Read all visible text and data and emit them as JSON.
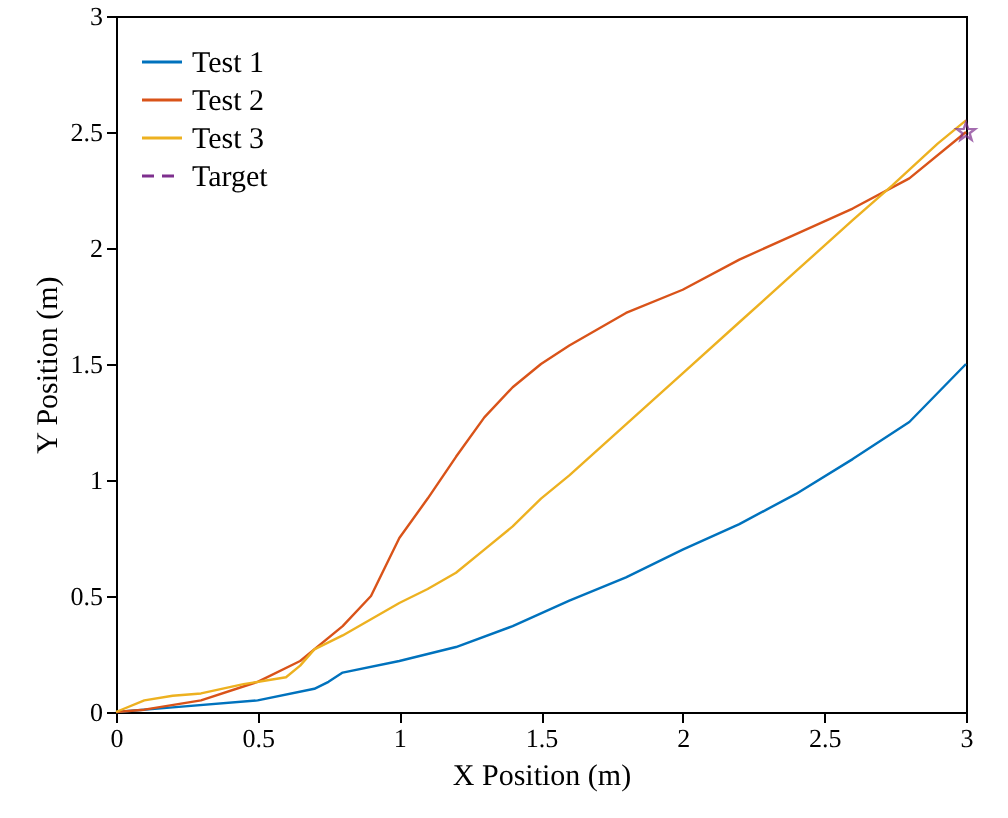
{
  "chart_data": {
    "type": "line",
    "xlabel": "X Position (m)",
    "ylabel": "Y Position (m)",
    "xlim": [
      0,
      3
    ],
    "ylim": [
      0,
      3
    ],
    "xticks": [
      0,
      0.5,
      1,
      1.5,
      2,
      2.5,
      3
    ],
    "yticks": [
      0,
      0.5,
      1,
      1.5,
      2,
      2.5,
      3
    ],
    "grid": false,
    "legend": "top left",
    "series": [
      {
        "name": "Test 1",
        "color": "#0072bd",
        "x": [
          0,
          0.2,
          0.5,
          0.7,
          0.75,
          0.8,
          1,
          1.2,
          1.4,
          1.6,
          1.8,
          2,
          2.2,
          2.4,
          2.6,
          2.8,
          3
        ],
        "values": [
          0,
          0.02,
          0.05,
          0.1,
          0.13,
          0.17,
          0.22,
          0.28,
          0.37,
          0.48,
          0.58,
          0.7,
          0.81,
          0.94,
          1.09,
          1.25,
          1.5
        ]
      },
      {
        "name": "Test 2",
        "color": "#d95319",
        "x": [
          0,
          0.1,
          0.3,
          0.5,
          0.65,
          0.8,
          0.9,
          1,
          1.1,
          1.2,
          1.3,
          1.4,
          1.5,
          1.6,
          1.8,
          2,
          2.2,
          2.4,
          2.6,
          2.8,
          3
        ],
        "values": [
          0,
          0.01,
          0.05,
          0.13,
          0.22,
          0.37,
          0.5,
          0.75,
          0.92,
          1.1,
          1.27,
          1.4,
          1.5,
          1.58,
          1.72,
          1.82,
          1.95,
          2.06,
          2.17,
          2.3,
          2.5
        ]
      },
      {
        "name": "Test 3",
        "color": "#edb120",
        "x": [
          0,
          0.1,
          0.2,
          0.3,
          0.45,
          0.6,
          0.65,
          0.7,
          0.8,
          1,
          1.1,
          1.2,
          1.3,
          1.4,
          1.5,
          1.6,
          1.8,
          2,
          2.2,
          2.4,
          2.6,
          2.74,
          2.9,
          3
        ],
        "values": [
          0,
          0.05,
          0.07,
          0.08,
          0.12,
          0.15,
          0.2,
          0.27,
          0.33,
          0.47,
          0.53,
          0.6,
          0.7,
          0.8,
          0.92,
          1.02,
          1.24,
          1.46,
          1.68,
          1.9,
          2.12,
          2.27,
          2.45,
          2.55
        ]
      },
      {
        "name": "Target",
        "color": "#7e2f8e",
        "type": "line",
        "marker": "star",
        "line_style": "dashed",
        "x": [
          3
        ],
        "values": [
          2.5
        ]
      }
    ]
  }
}
